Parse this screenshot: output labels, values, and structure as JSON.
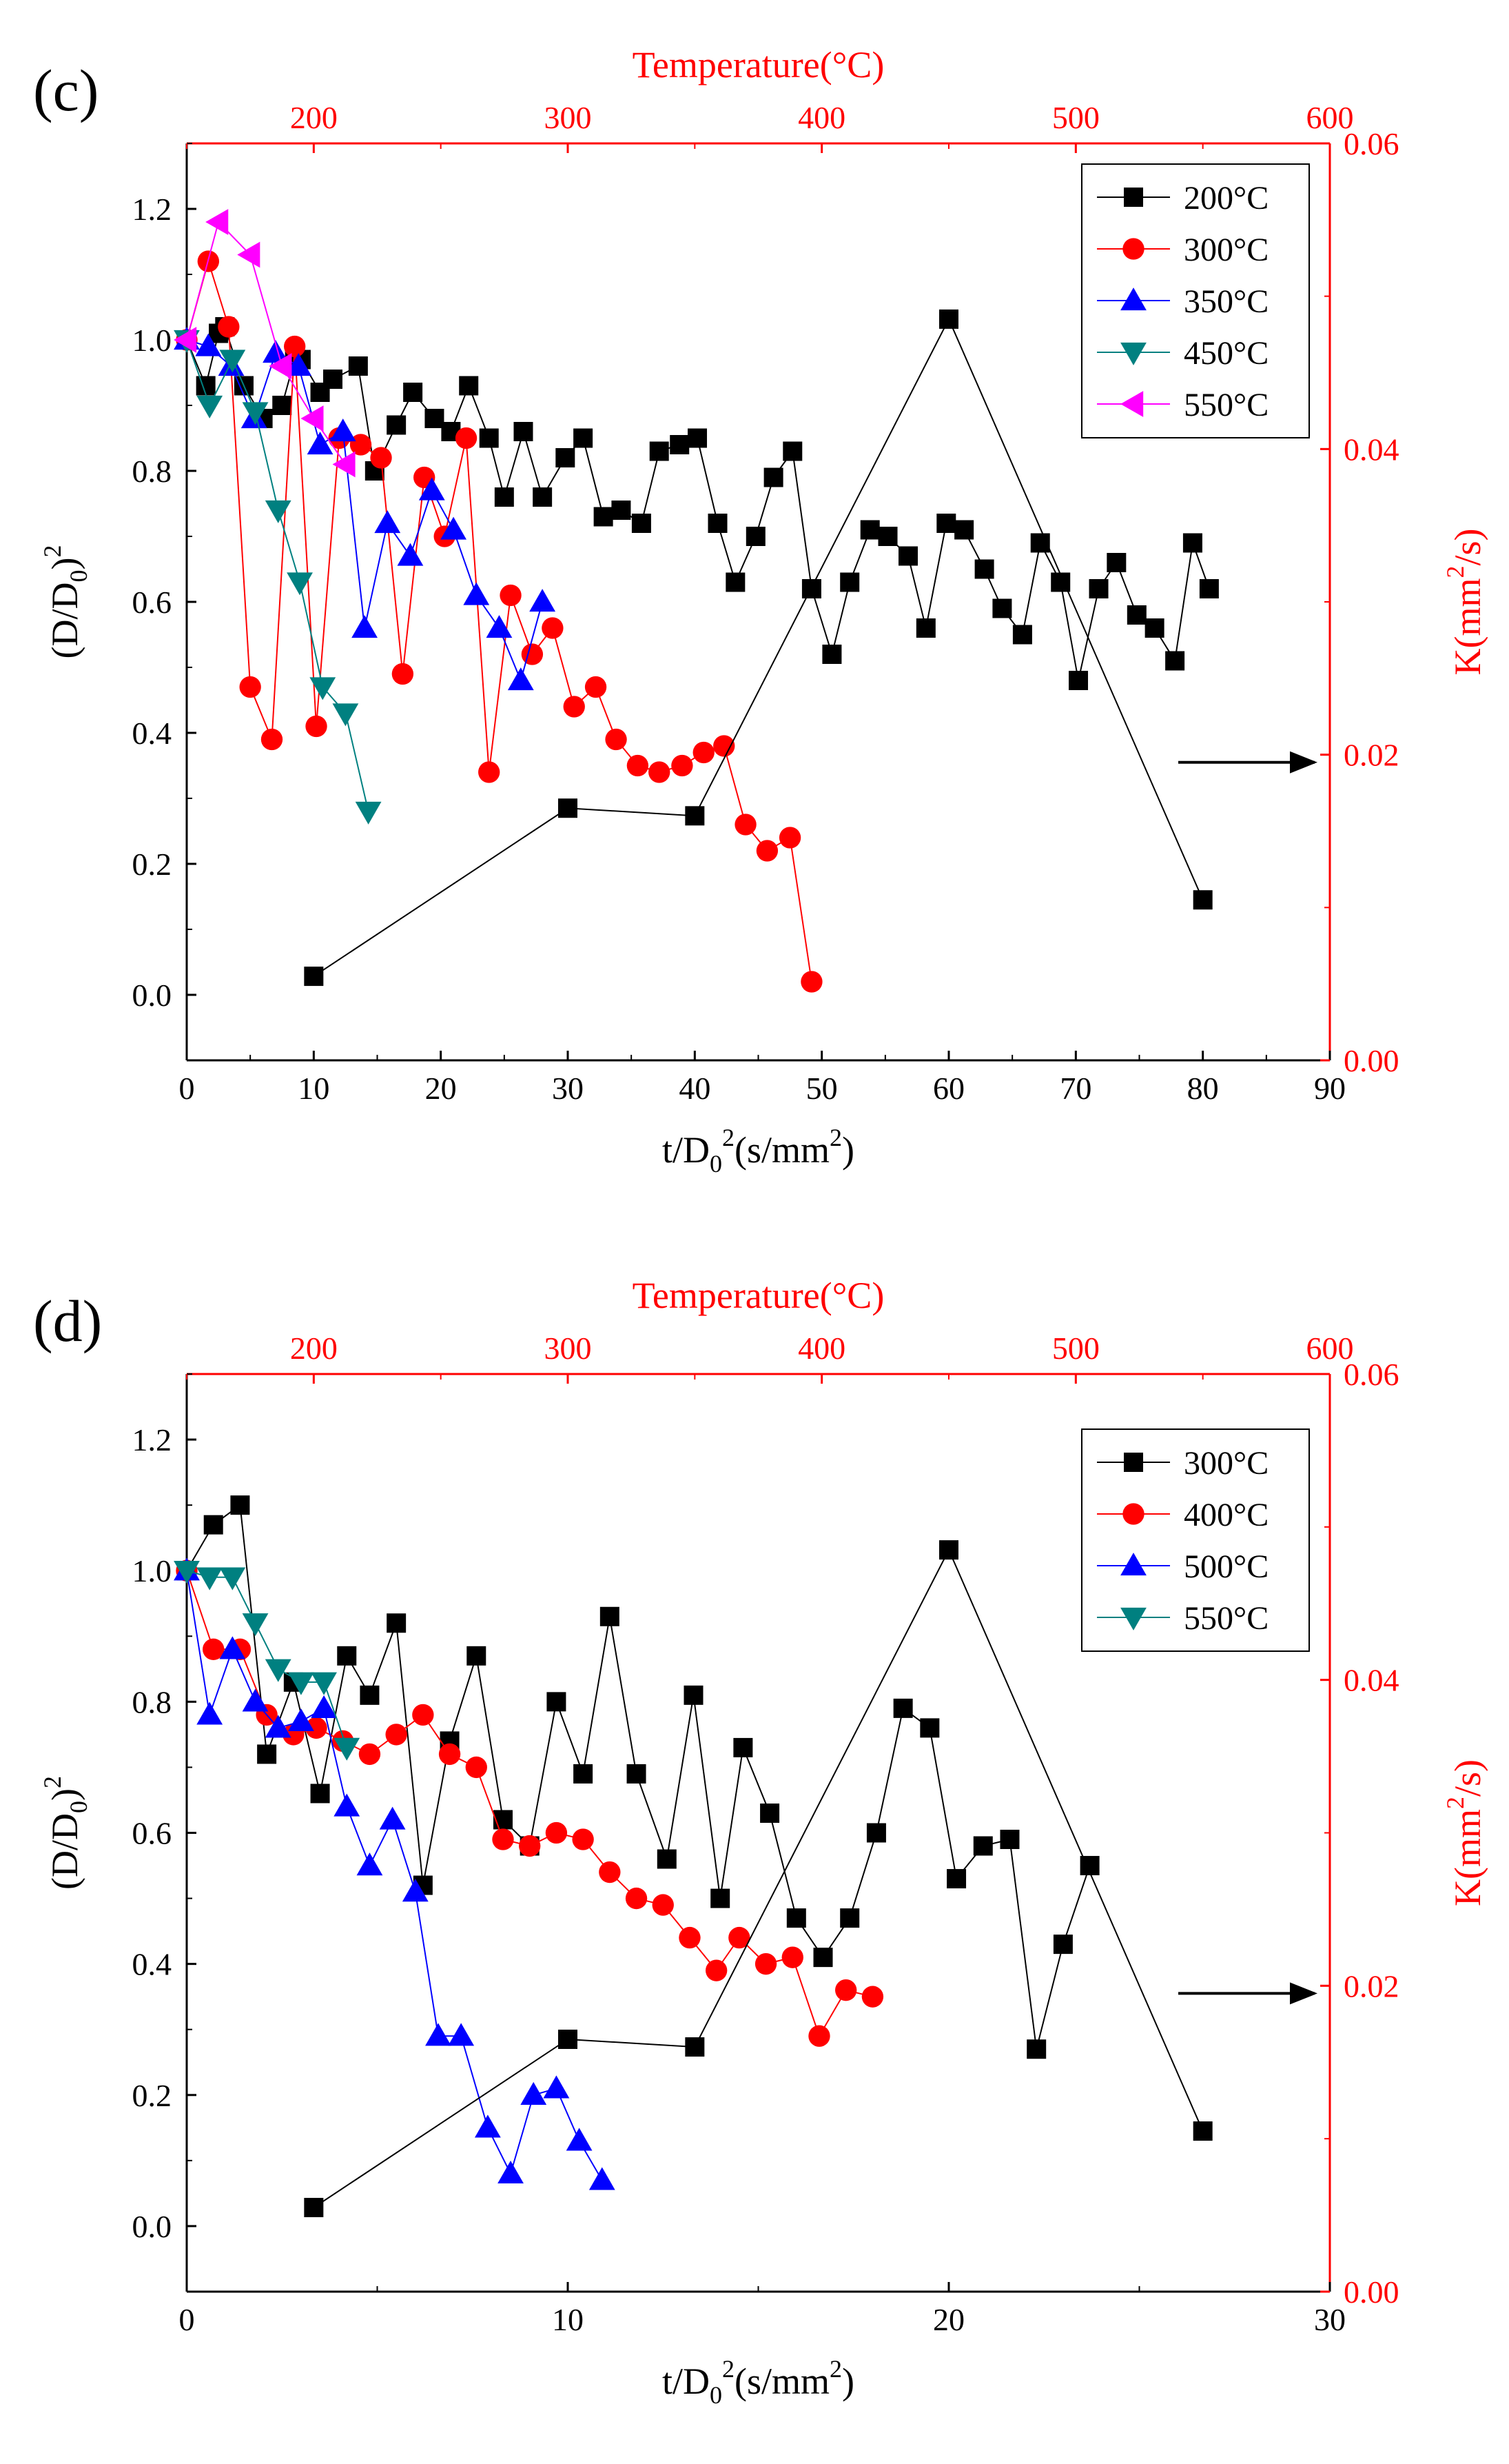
{
  "figure_panels": [
    "(c)",
    "(d)"
  ],
  "legend_suffix": "°C",
  "chart_data": [
    {
      "panel": "(c)",
      "type": "scatter",
      "title": "",
      "xlabel": "t/D0^2(s/mm^2)",
      "xlabel_parts": {
        "a": "t/D",
        "sub": "0",
        "sup": "2",
        "b": "(s/mm",
        "sup2": "2",
        "c": ")"
      },
      "ylabel": "(D/D0)^2",
      "ylabel_parts": {
        "a": "(D/D",
        "sub": "0",
        "b": ")",
        "sup": "2"
      },
      "top_xlabel": "Temperature(°C)",
      "right_ylabel": "K(mm^2/s)",
      "right_ylabel_parts": {
        "a": "K(mm",
        "sup": "2",
        "b": "/s)"
      },
      "xlim": [
        0,
        90
      ],
      "ylim": [
        -0.1,
        1.3
      ],
      "top_xlim": [
        150,
        600
      ],
      "right_ylim": [
        0,
        0.06
      ],
      "x_ticks": [
        "0",
        "10",
        "20",
        "30",
        "40",
        "50",
        "60",
        "70",
        "80",
        "90"
      ],
      "y_ticks": [
        "0.0",
        "0.2",
        "0.4",
        "0.6",
        "0.8",
        "1.0",
        "1.2"
      ],
      "top_ticks": [
        "200",
        "300",
        "400",
        "500",
        "600"
      ],
      "right_ticks": [
        "0.00",
        "0.02",
        "0.04",
        "0.06"
      ],
      "series": [
        {
          "name": "200°C",
          "color": "#000000",
          "marker": "square",
          "x": [
            0,
            1.5,
            2.5,
            3,
            4.5,
            6,
            7.5,
            8.5,
            9,
            10.5,
            11.5,
            13.5,
            14.8,
            16.5,
            17.8,
            19.5,
            20.8,
            22.2,
            23.8,
            25,
            26.5,
            28,
            29.8,
            31.2,
            32.8,
            34.2,
            35.8,
            37.2,
            38.8,
            40.2,
            41.8,
            43.2,
            44.8,
            46.2,
            47.7,
            49.2,
            50.8,
            52.2,
            53.8,
            55.2,
            56.8,
            58.2,
            59.8,
            61.2,
            62.8,
            64.2,
            65.8,
            67.2,
            68.8,
            70.2,
            71.8,
            73.2,
            74.8,
            76.2,
            77.8,
            79.2,
            80.5
          ],
          "y": [
            1.0,
            0.93,
            1.01,
            1.02,
            0.93,
            0.88,
            0.9,
            0.97,
            0.97,
            0.92,
            0.94,
            0.96,
            0.8,
            0.87,
            0.92,
            0.88,
            0.86,
            0.93,
            0.85,
            0.76,
            0.86,
            0.76,
            0.82,
            0.85,
            0.73,
            0.74,
            0.72,
            0.83,
            0.84,
            0.85,
            0.72,
            0.63,
            0.7,
            0.79,
            0.83,
            0.62,
            0.52,
            0.63,
            0.71,
            0.7,
            0.67,
            0.56,
            0.72,
            0.71,
            0.65,
            0.59,
            0.55,
            0.69,
            0.63,
            0.48,
            0.62,
            0.66,
            0.58,
            0.56,
            0.51,
            0.69,
            0.62
          ]
        },
        {
          "name": "300°C",
          "color": "#ff0000",
          "marker": "circle",
          "x": [
            0,
            1.7,
            3.3,
            5,
            6.7,
            8.5,
            10.2,
            12,
            13.7,
            15.3,
            17,
            18.7,
            20.3,
            22,
            23.8,
            25.5,
            27.2,
            28.8,
            30.5,
            32.2,
            33.8,
            35.5,
            37.2,
            39,
            40.7,
            42.3,
            44,
            45.7,
            47.5,
            49.2
          ],
          "y": [
            1.0,
            1.12,
            1.02,
            0.47,
            0.39,
            0.99,
            0.41,
            0.85,
            0.84,
            0.82,
            0.49,
            0.79,
            0.7,
            0.85,
            0.34,
            0.61,
            0.52,
            0.56,
            0.44,
            0.47,
            0.39,
            0.35,
            0.34,
            0.35,
            0.37,
            0.38,
            0.26,
            0.22,
            0.24,
            0.02
          ]
        },
        {
          "name": "350°C",
          "color": "#0000ff",
          "marker": "triangle-up",
          "x": [
            0,
            1.7,
            3.5,
            5.3,
            7,
            8.8,
            10.5,
            12.3,
            14,
            15.8,
            17.6,
            19.3,
            21,
            22.8,
            24.6,
            26.3,
            28
          ],
          "y": [
            1.0,
            0.99,
            0.96,
            0.88,
            0.98,
            0.96,
            0.84,
            0.86,
            0.56,
            0.72,
            0.67,
            0.77,
            0.71,
            0.61,
            0.56,
            0.48,
            0.6
          ]
        },
        {
          "name": "450°C",
          "color": "#008080",
          "marker": "triangle-down",
          "x": [
            0,
            1.8,
            3.6,
            5.4,
            7.2,
            8.9,
            10.7,
            12.5,
            14.3
          ],
          "y": [
            1.0,
            0.9,
            0.97,
            0.89,
            0.74,
            0.63,
            0.47,
            0.43,
            0.28
          ]
        },
        {
          "name": "550°C",
          "color": "#ff00ff",
          "marker": "triangle-left",
          "x": [
            0,
            2.5,
            5,
            7.5,
            10,
            12.5
          ],
          "y": [
            1.0,
            1.18,
            1.13,
            0.96,
            0.88,
            0.81
          ]
        }
      ],
      "k_series": {
        "name": "K",
        "color": "#000000",
        "marker": "square",
        "temperature": [
          200,
          300,
          350,
          450,
          550
        ],
        "k": [
          0.0055,
          0.0165,
          0.016,
          0.0485,
          0.0105
        ]
      },
      "annotation": "arrow pointing to right axis"
    },
    {
      "panel": "(d)",
      "type": "scatter",
      "title": "",
      "xlabel": "t/D0^2(s/mm^2)",
      "xlabel_parts": {
        "a": "t/D",
        "sub": "0",
        "sup": "2",
        "b": "(s/mm",
        "sup2": "2",
        "c": ")"
      },
      "ylabel": "(D/D0)^2",
      "ylabel_parts": {
        "a": "(D/D",
        "sub": "0",
        "b": ")",
        "sup": "2"
      },
      "top_xlabel": "Temperature(°C)",
      "right_ylabel": "K(mm^2/s)",
      "right_ylabel_parts": {
        "a": "K(mm",
        "sup": "2",
        "b": "/s)"
      },
      "xlim": [
        0,
        30
      ],
      "ylim": [
        -0.1,
        1.3
      ],
      "top_xlim": [
        150,
        600
      ],
      "right_ylim": [
        0,
        0.06
      ],
      "x_ticks": [
        "0",
        "10",
        "20",
        "30"
      ],
      "y_ticks": [
        "0.0",
        "0.2",
        "0.4",
        "0.6",
        "0.8",
        "1.0",
        "1.2"
      ],
      "top_ticks": [
        "200",
        "300",
        "400",
        "500",
        "600"
      ],
      "right_ticks": [
        "0.00",
        "0.02",
        "0.04",
        "0.06"
      ],
      "series": [
        {
          "name": "300°C",
          "color": "#000000",
          "marker": "square",
          "x": [
            0,
            0.7,
            1.4,
            2.1,
            2.8,
            3.5,
            4.2,
            4.8,
            5.5,
            6.2,
            6.9,
            7.6,
            8.3,
            9,
            9.7,
            10.4,
            11.1,
            11.8,
            12.6,
            13.3,
            14,
            14.6,
            15.3,
            16,
            16.7,
            17.4,
            18.1,
            18.8,
            19.5,
            20.2,
            20.9,
            21.6,
            22.3,
            23,
            23.7
          ],
          "y": [
            1.0,
            1.07,
            1.1,
            0.72,
            0.83,
            0.66,
            0.87,
            0.81,
            0.92,
            0.52,
            0.74,
            0.87,
            0.62,
            0.58,
            0.8,
            0.69,
            0.93,
            0.69,
            0.56,
            0.81,
            0.5,
            0.73,
            0.63,
            0.47,
            0.41,
            0.47,
            0.6,
            0.79,
            0.76,
            0.53,
            0.58,
            0.59,
            0.27,
            0.43,
            0.55
          ]
        },
        {
          "name": "400°C",
          "color": "#ff0000",
          "marker": "circle",
          "x": [
            0,
            0.7,
            1.4,
            2.1,
            2.8,
            3.4,
            4.1,
            4.8,
            5.5,
            6.2,
            6.9,
            7.6,
            8.3,
            9,
            9.7,
            10.4,
            11.1,
            11.8,
            12.5,
            13.2,
            13.9,
            14.5,
            15.2,
            15.9,
            16.6,
            17.3,
            18
          ],
          "y": [
            1.0,
            0.88,
            0.88,
            0.78,
            0.75,
            0.76,
            0.74,
            0.72,
            0.75,
            0.78,
            0.72,
            0.7,
            0.59,
            0.58,
            0.6,
            0.59,
            0.54,
            0.5,
            0.49,
            0.44,
            0.39,
            0.44,
            0.4,
            0.41,
            0.29,
            0.36,
            0.35
          ]
        },
        {
          "name": "500°C",
          "color": "#0000ff",
          "marker": "triangle-up",
          "x": [
            0,
            0.6,
            1.2,
            1.8,
            2.4,
            3,
            3.6,
            4.2,
            4.8,
            5.4,
            6,
            6.6,
            7.2,
            7.9,
            8.5,
            9.1,
            9.7,
            10.3,
            10.9
          ],
          "y": [
            1.0,
            0.78,
            0.88,
            0.8,
            0.76,
            0.77,
            0.79,
            0.64,
            0.55,
            0.62,
            0.51,
            0.29,
            0.29,
            0.15,
            0.08,
            0.2,
            0.21,
            0.13,
            0.07
          ]
        },
        {
          "name": "550°C",
          "color": "#008080",
          "marker": "triangle-down",
          "x": [
            0,
            0.6,
            1.2,
            1.8,
            2.4,
            3,
            3.6,
            4.2
          ],
          "y": [
            1.0,
            0.99,
            0.99,
            0.92,
            0.85,
            0.83,
            0.83,
            0.73
          ]
        }
      ],
      "k_series": {
        "name": "K",
        "color": "#000000",
        "marker": "square",
        "temperature": [
          200,
          300,
          350,
          450,
          550
        ],
        "k": [
          0.0055,
          0.0165,
          0.016,
          0.0485,
          0.0105
        ]
      },
      "annotation": "arrow pointing to right axis"
    }
  ]
}
